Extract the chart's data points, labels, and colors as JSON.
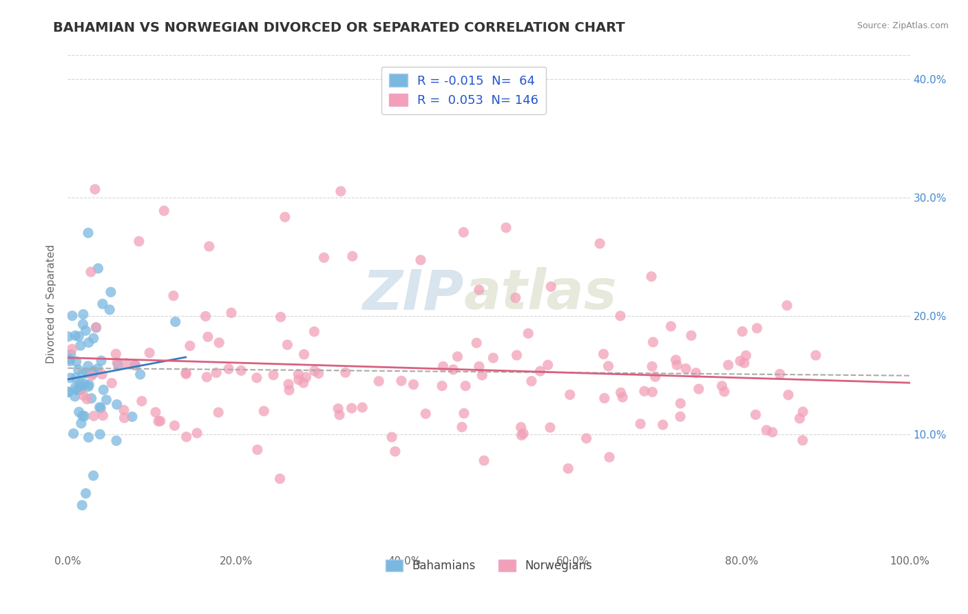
{
  "title": "BAHAMIAN VS NORWEGIAN DIVORCED OR SEPARATED CORRELATION CHART",
  "source": "Source: ZipAtlas.com",
  "ylabel": "Divorced or Separated",
  "watermark_zip": "ZIP",
  "watermark_atlas": "atlas",
  "R_bahamian": -0.015,
  "N_bahamian": 64,
  "R_norwegian": 0.053,
  "N_norwegian": 146,
  "xlim": [
    0,
    1.0
  ],
  "ylim": [
    0,
    0.42
  ],
  "xticks": [
    0.0,
    0.2,
    0.4,
    0.6,
    0.8,
    1.0
  ],
  "xtick_labels": [
    "0.0%",
    "20.0%",
    "40.0%",
    "60.0%",
    "80.0%",
    "100.0%"
  ],
  "yticks": [
    0.0,
    0.1,
    0.2,
    0.3,
    0.4
  ],
  "ytick_labels_right": [
    "",
    "10.0%",
    "20.0%",
    "30.0%",
    "40.0%"
  ],
  "color_bahamian": "#7ab8e0",
  "color_norwegian": "#f2a0b8",
  "trendline_color_bahamian": "#3a7abf",
  "trendline_color_norwegian": "#d96080",
  "dashed_line_color": "#aaaaaa",
  "background_color": "#ffffff",
  "grid_color": "#cccccc",
  "title_color": "#333333",
  "source_color": "#888888",
  "legend_text_color": "#2255cc",
  "axis_label_color": "#666666",
  "right_axis_color": "#4488cc"
}
